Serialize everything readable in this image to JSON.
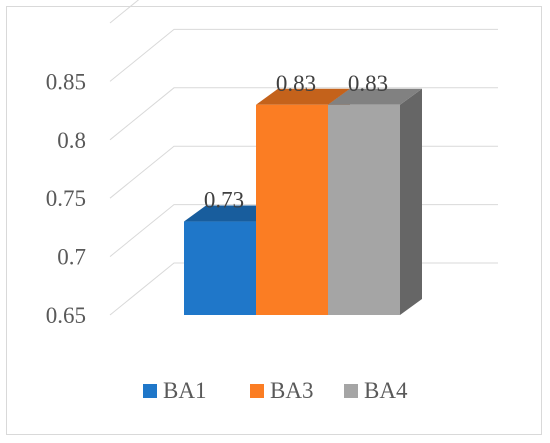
{
  "chart_data": {
    "type": "bar",
    "style": "3d-clustered-column",
    "categories": [
      "BA1",
      "BA3",
      "BA4"
    ],
    "values": [
      0.73,
      0.83,
      0.83
    ],
    "data_labels": [
      "0.73",
      "0.83",
      "0.83"
    ],
    "y_ticks": [
      "0.65",
      "0.7",
      "0.75",
      "0.8",
      "0.85"
    ],
    "ylim": [
      0.65,
      0.9
    ],
    "grid": true,
    "legend_position": "bottom",
    "series": [
      {
        "name": "BA1",
        "color": "#1f77c9"
      },
      {
        "name": "BA3",
        "color": "#fb7d23"
      },
      {
        "name": "BA4",
        "color": "#a5a5a5"
      }
    ]
  }
}
